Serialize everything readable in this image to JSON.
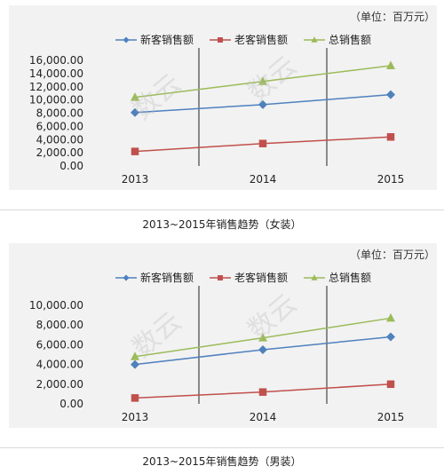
{
  "colors": {
    "new": "#4f81bd",
    "old": "#c0504d",
    "total": "#9bbb59",
    "grid": "#222222",
    "plot_bg": "#f2f2f2"
  },
  "chart_data": [
    {
      "type": "line",
      "unit_label": "（单位：百万元）",
      "caption": "2013~2015年销售趋势（女装）",
      "categories": [
        "2013",
        "2014",
        "2015"
      ],
      "ylim": [
        0,
        16000
      ],
      "yticks": [
        "16,000.00",
        "14,000.00",
        "12,000.00",
        "10,000.00",
        "8,000.00",
        "6,000.00",
        "4,000.00",
        "2,000.00",
        "0.00"
      ],
      "ytick_values": [
        16000,
        14000,
        12000,
        10000,
        8000,
        6000,
        4000,
        2000,
        0
      ],
      "legend_position": "top",
      "series": [
        {
          "name": "新客销售额",
          "marker": "diamond",
          "color_key": "new",
          "values": [
            8100,
            9300,
            10800
          ]
        },
        {
          "name": "老客销售额",
          "marker": "square",
          "color_key": "old",
          "values": [
            2200,
            3400,
            4400
          ]
        },
        {
          "name": "总销售额",
          "marker": "triangle",
          "color_key": "total",
          "values": [
            10400,
            12800,
            15200
          ]
        }
      ]
    },
    {
      "type": "line",
      "unit_label": "（单位：百万元）",
      "caption": "2013~2015年销售趋势（男装）",
      "categories": [
        "2013",
        "2014",
        "2015"
      ],
      "ylim": [
        0,
        10000
      ],
      "yticks": [
        "10,000.00",
        "8,000.00",
        "6,000.00",
        "4,000.00",
        "2,000.00",
        "0.00"
      ],
      "ytick_values": [
        10000,
        8000,
        6000,
        4000,
        2000,
        0
      ],
      "legend_position": "top",
      "series": [
        {
          "name": "新客销售额",
          "marker": "diamond",
          "color_key": "new",
          "values": [
            4000,
            5500,
            6800
          ]
        },
        {
          "name": "老客销售额",
          "marker": "square",
          "color_key": "old",
          "values": [
            600,
            1200,
            2000
          ]
        },
        {
          "name": "总销售额",
          "marker": "triangle",
          "color_key": "total",
          "values": [
            4800,
            6700,
            8700
          ]
        }
      ]
    }
  ],
  "watermark": {
    "text": "数云"
  }
}
